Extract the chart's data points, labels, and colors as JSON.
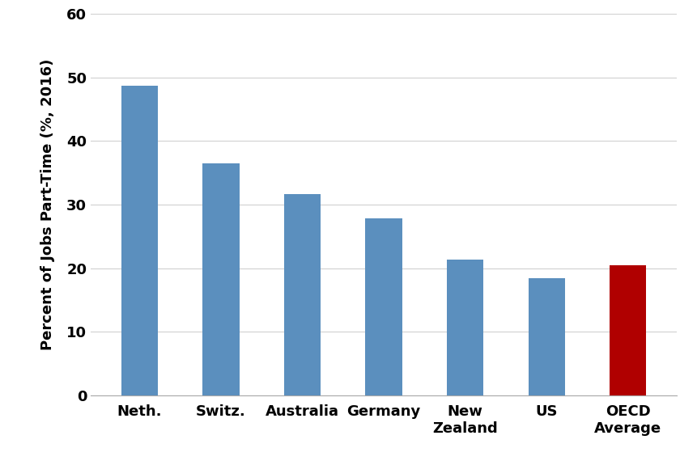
{
  "categories": [
    "Neth.",
    "Switz.",
    "Australia",
    "Germany",
    "New\nZealand",
    "US",
    "OECD\nAverage"
  ],
  "values": [
    48.7,
    36.5,
    31.6,
    27.8,
    21.3,
    18.4,
    20.4
  ],
  "bar_colors": [
    "#5b8fbe",
    "#5b8fbe",
    "#5b8fbe",
    "#5b8fbe",
    "#5b8fbe",
    "#5b8fbe",
    "#b00000"
  ],
  "ylabel": "Percent of Jobs Part-Time (%, 2016)",
  "ylim": [
    0,
    60
  ],
  "yticks": [
    0,
    10,
    20,
    30,
    40,
    50,
    60
  ],
  "background_color": "#ffffff",
  "grid_color": "#d0d0d0",
  "bar_width": 0.45,
  "ylabel_fontsize": 13,
  "tick_fontsize": 13,
  "figsize": [
    8.62,
    5.75
  ],
  "dpi": 100
}
